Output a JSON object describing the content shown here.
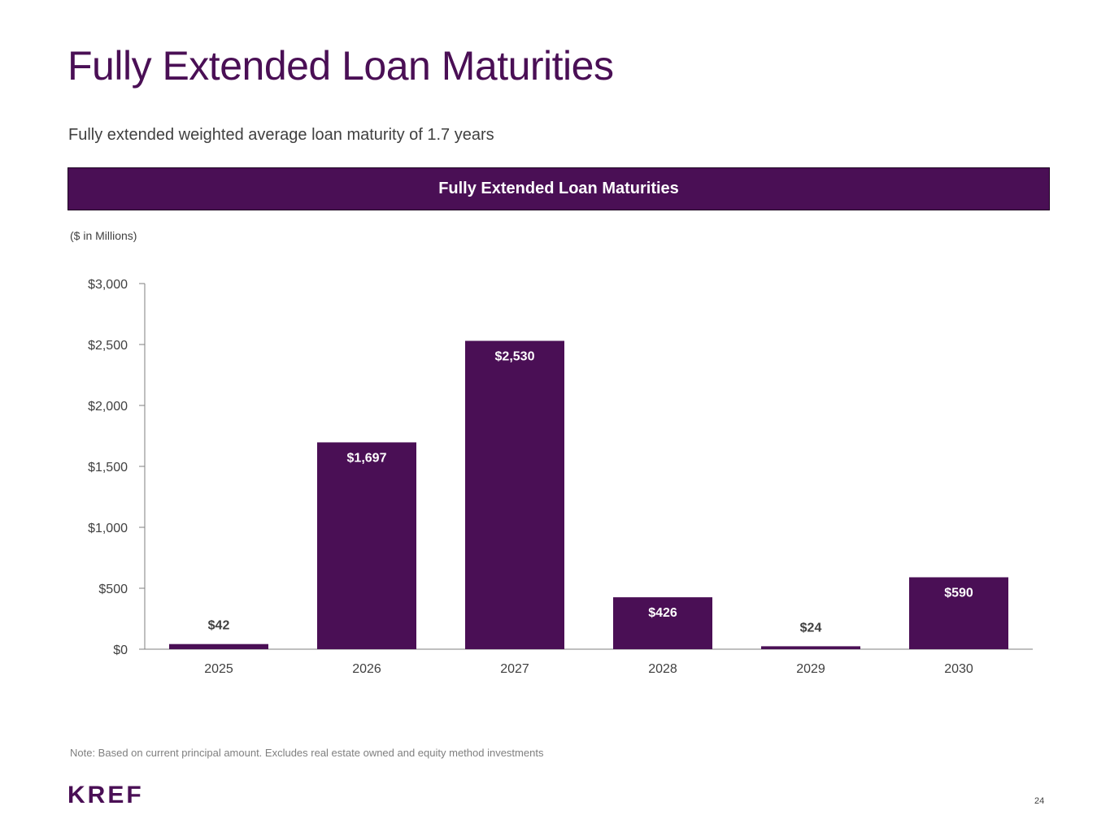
{
  "page": {
    "title": "Fully Extended Loan Maturities",
    "subtitle": "Fully extended weighted average loan maturity of 1.7 years",
    "banner": "Fully Extended Loan Maturities",
    "units_note": "($ in Millions)",
    "footnote": "Note: Based on current principal amount. Excludes real estate owned and equity method investments",
    "logo_text": "KREF",
    "page_number": "24"
  },
  "colors": {
    "brand": "#4a0f55",
    "axis": "#7f7f7f",
    "text": "#404040"
  },
  "chart_data": {
    "type": "bar",
    "title": "Fully Extended Loan Maturities",
    "categories": [
      "2025",
      "2026",
      "2027",
      "2028",
      "2029",
      "2030"
    ],
    "values": [
      42,
      1697,
      2530,
      426,
      24,
      590
    ],
    "data_labels": [
      "$42",
      "$1,697",
      "$2,530",
      "$426",
      "$24",
      "$590"
    ],
    "yticks": [
      0,
      500,
      1000,
      1500,
      2000,
      2500,
      3000
    ],
    "ytick_labels": [
      "$0",
      "$500",
      "$1,000",
      "$1,500",
      "$2,000",
      "$2,500",
      "$3,000"
    ],
    "ylim": [
      0,
      3000
    ],
    "xlabel": "",
    "ylabel": "",
    "grid": false,
    "legend": "none"
  }
}
